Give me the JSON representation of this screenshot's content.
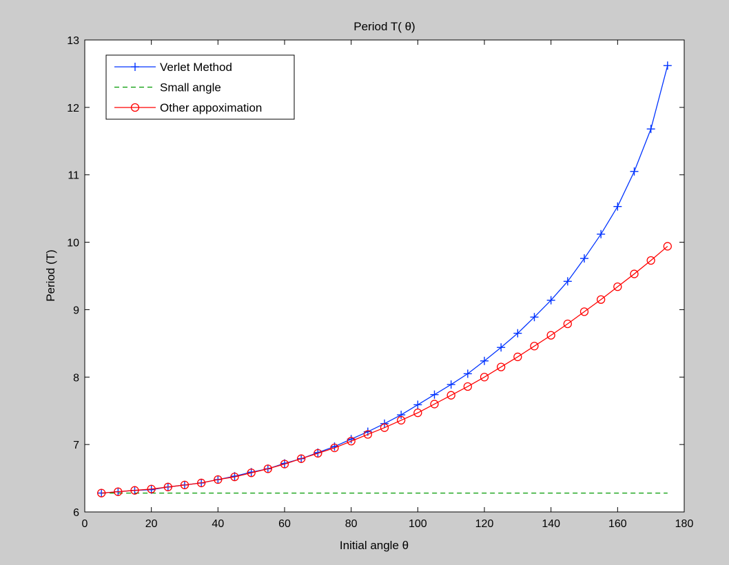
{
  "chart_data": {
    "type": "line",
    "title": "Period T( θ)",
    "xlabel": "Initial angle   θ",
    "ylabel": "Period (T)",
    "xlim": [
      0,
      180
    ],
    "ylim": [
      6,
      13
    ],
    "xticks": [
      "0",
      "20",
      "40",
      "60",
      "80",
      "100",
      "120",
      "140",
      "160",
      "180"
    ],
    "yticks": [
      "6",
      "7",
      "8",
      "9",
      "10",
      "11",
      "12",
      "13"
    ],
    "grid": false,
    "legend_position": "top-left",
    "x": [
      5,
      10,
      15,
      20,
      25,
      30,
      35,
      40,
      45,
      50,
      55,
      60,
      65,
      70,
      75,
      80,
      85,
      90,
      95,
      100,
      105,
      110,
      115,
      120,
      125,
      130,
      135,
      140,
      145,
      150,
      155,
      160,
      165,
      170,
      175
    ],
    "series": [
      {
        "name": "Verlet Method",
        "color": "#0033ff",
        "line_style": "solid",
        "marker": "plus",
        "values": [
          6.28,
          6.3,
          6.32,
          6.33,
          6.37,
          6.4,
          6.43,
          6.48,
          6.53,
          6.59,
          6.64,
          6.72,
          6.79,
          6.88,
          6.97,
          7.08,
          7.19,
          7.31,
          7.44,
          7.59,
          7.74,
          7.89,
          8.05,
          8.24,
          8.44,
          8.65,
          8.89,
          9.14,
          9.42,
          9.76,
          10.12,
          10.53,
          11.05,
          11.68,
          12.62
        ]
      },
      {
        "name": "Small angle",
        "color": "#009900",
        "line_style": "dashed",
        "marker": "none",
        "values": [
          6.28,
          6.28,
          6.28,
          6.28,
          6.28,
          6.28,
          6.28,
          6.28,
          6.28,
          6.28,
          6.28,
          6.28,
          6.28,
          6.28,
          6.28,
          6.28,
          6.28,
          6.28,
          6.28,
          6.28,
          6.28,
          6.28,
          6.28,
          6.28,
          6.28,
          6.28,
          6.28,
          6.28,
          6.28,
          6.28,
          6.28,
          6.28,
          6.28,
          6.28,
          6.28
        ]
      },
      {
        "name": "Other appoximation",
        "color": "#ff0000",
        "line_style": "solid",
        "marker": "circle",
        "values": [
          6.28,
          6.3,
          6.32,
          6.34,
          6.37,
          6.4,
          6.43,
          6.48,
          6.52,
          6.58,
          6.64,
          6.71,
          6.79,
          6.87,
          6.95,
          7.05,
          7.15,
          7.25,
          7.36,
          7.47,
          7.6,
          7.73,
          7.86,
          8.0,
          8.15,
          8.3,
          8.46,
          8.62,
          8.79,
          8.97,
          9.15,
          9.34,
          9.53,
          9.73,
          9.94
        ]
      }
    ]
  }
}
